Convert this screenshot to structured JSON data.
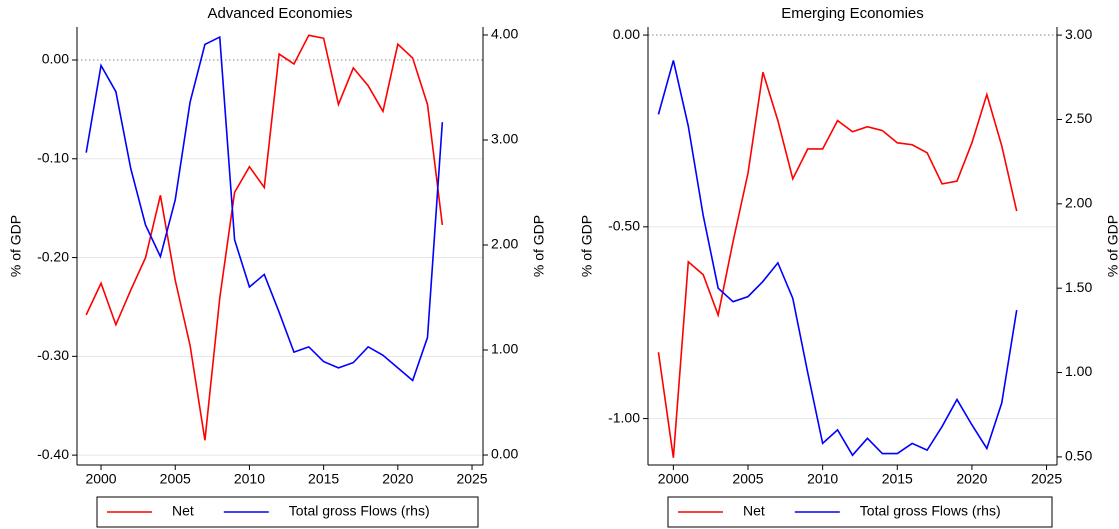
{
  "chart_data": [
    {
      "type": "line",
      "title": "Advanced Economies",
      "y_label": "% of GDP",
      "y2_label": "% of GDP",
      "x": [
        1999,
        2000,
        2001,
        2002,
        2003,
        2004,
        2005,
        2006,
        2007,
        2008,
        2009,
        2010,
        2011,
        2012,
        2013,
        2014,
        2015,
        2016,
        2017,
        2018,
        2019,
        2020,
        2021,
        2022,
        2023
      ],
      "xlim": [
        1998.38,
        2025.74
      ],
      "xticks": [
        2000,
        2005,
        2010,
        2015,
        2020,
        2025
      ],
      "ylim": [
        -0.41,
        0.0334
      ],
      "yticks": [
        {
          "value": -0.4,
          "label": "-0.40"
        },
        {
          "value": -0.3,
          "label": "-0.30"
        },
        {
          "value": -0.2,
          "label": "-0.20"
        },
        {
          "value": -0.1,
          "label": "-0.10"
        },
        {
          "value": 0,
          "label": "0.00"
        }
      ],
      "y2lim": [
        -0.095,
        4.076
      ],
      "y2ticks": [
        {
          "value": 0,
          "label": "0.00"
        },
        {
          "value": 1,
          "label": "1.00"
        },
        {
          "value": 2,
          "label": "2.00"
        },
        {
          "value": 3,
          "label": "3.00"
        },
        {
          "value": 4,
          "label": "4.00"
        }
      ],
      "grid": true,
      "legend": "bottom",
      "series": [
        {
          "name": "Net",
          "color": "#ff0000",
          "values": [
            -0.258,
            -0.226,
            -0.268,
            -0.233,
            -0.2,
            -0.137,
            -0.223,
            -0.289,
            -0.385,
            -0.241,
            -0.134,
            -0.108,
            -0.129,
            0.006,
            -0.004,
            0.025,
            0.022,
            -0.045,
            -0.008,
            -0.026,
            -0.052,
            0.016,
            0.002,
            -0.045,
            -0.167
          ]
        },
        {
          "name": "Total gross Flows (rhs)",
          "color": "#0000ff",
          "axis": "y2",
          "values": [
            2.88,
            3.71,
            3.46,
            2.73,
            2.19,
            1.89,
            2.43,
            3.36,
            3.91,
            3.98,
            2.05,
            1.6,
            1.72,
            1.36,
            0.98,
            1.03,
            0.89,
            0.83,
            0.88,
            1.03,
            0.95,
            0.83,
            0.71,
            1.12,
            3.17
          ]
        }
      ]
    },
    {
      "type": "line",
      "title": "Emerging Economies",
      "y_label": "% of GDP",
      "y2_label": "% of GDP",
      "x": [
        1999,
        2000,
        2001,
        2002,
        2003,
        2004,
        2005,
        2006,
        2007,
        2008,
        2009,
        2010,
        2011,
        2012,
        2013,
        2014,
        2015,
        2016,
        2017,
        2018,
        2019,
        2020,
        2021,
        2022,
        2023
      ],
      "xlim": [
        1998.3,
        2025.7
      ],
      "xticks": [
        2000,
        2005,
        2010,
        2015,
        2020,
        2025
      ],
      "ylim": [
        -1.121,
        0.021
      ],
      "yticks": [
        {
          "value": -1,
          "label": "-1.00"
        },
        {
          "value": -0.5,
          "label": "-0.50"
        },
        {
          "value": 0,
          "label": "0.00"
        }
      ],
      "y2lim": [
        0.452,
        3.048
      ],
      "y2ticks": [
        {
          "value": 0.5,
          "label": "0.50"
        },
        {
          "value": 1,
          "label": "1.00"
        },
        {
          "value": 1.5,
          "label": "1.50"
        },
        {
          "value": 2,
          "label": "2.00"
        },
        {
          "value": 2.5,
          "label": "2.50"
        },
        {
          "value": 3,
          "label": "3.00"
        }
      ],
      "grid": true,
      "legend": "bottom",
      "series": [
        {
          "name": "Net",
          "color": "#ff0000",
          "values": [
            -0.827,
            -1.102,
            -0.591,
            -0.625,
            -0.73,
            -0.538,
            -0.36,
            -0.097,
            -0.223,
            -0.375,
            -0.297,
            -0.297,
            -0.223,
            -0.252,
            -0.239,
            -0.249,
            -0.281,
            -0.286,
            -0.307,
            -0.388,
            -0.381,
            -0.281,
            -0.155,
            -0.289,
            -0.459
          ]
        },
        {
          "name": "Total gross Flows (rhs)",
          "color": "#0000ff",
          "axis": "y2",
          "values": [
            2.53,
            2.85,
            2.46,
            1.93,
            1.5,
            1.42,
            1.45,
            1.54,
            1.65,
            1.44,
            1.0,
            0.58,
            0.66,
            0.51,
            0.61,
            0.52,
            0.52,
            0.58,
            0.54,
            0.68,
            0.84,
            0.69,
            0.55,
            0.82,
            1.37
          ]
        }
      ]
    }
  ]
}
